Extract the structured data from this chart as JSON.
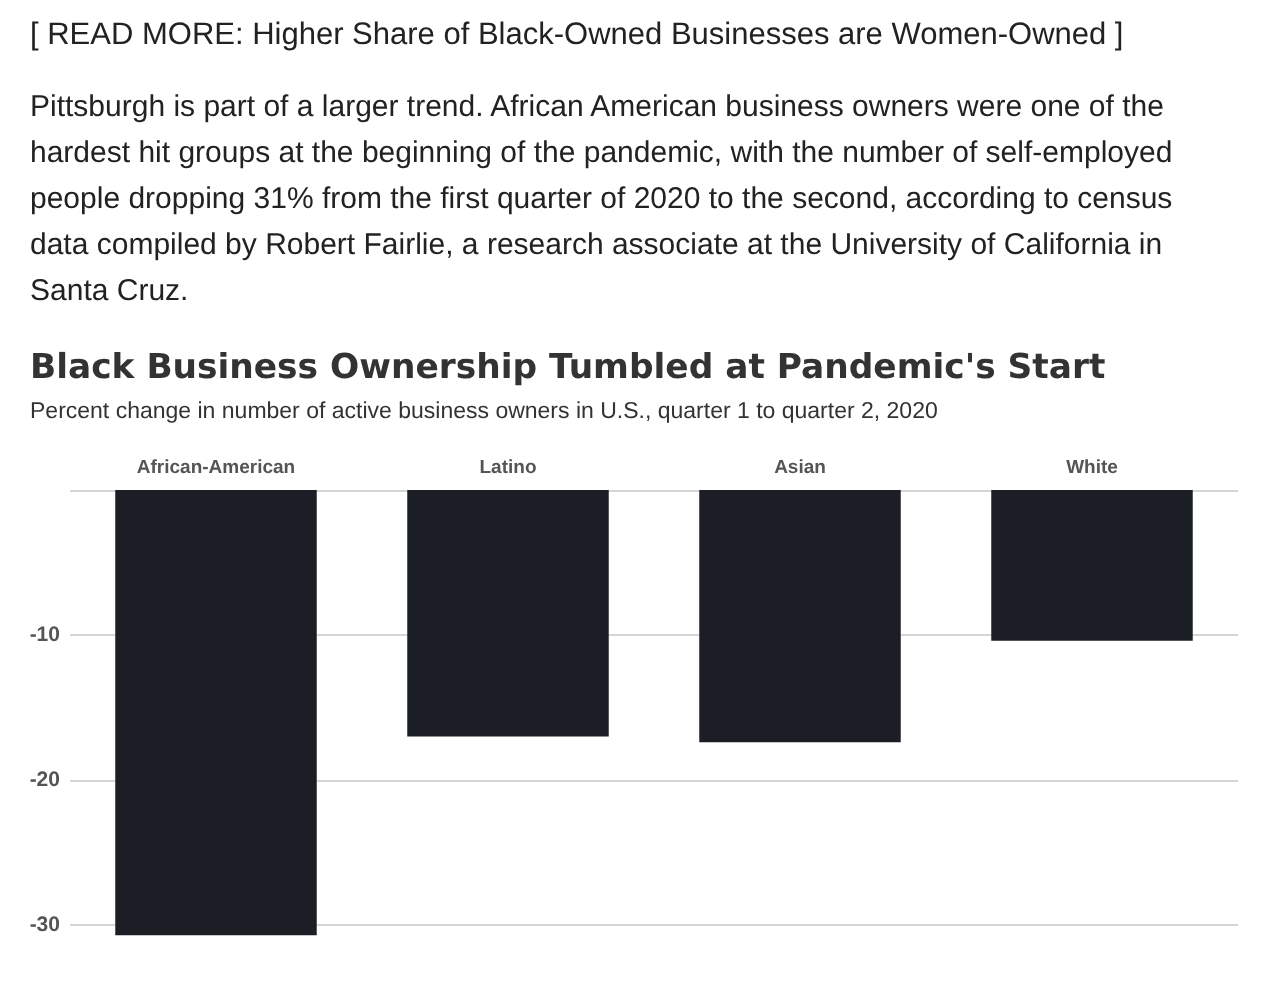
{
  "chart_data": {
    "type": "bar",
    "title": "Black Business Ownership Tumbled at Pandemic's Start",
    "subtitle": "Percent change in number of active business owners in U.S., quarter 1 to quarter 2, 2020",
    "annotations": [
      "[ READ MORE: Higher Share of Black-Owned Businesses are Women-Owned ]",
      "Pittsburgh is part of a larger trend. African American business owners were one of the hardest hit groups at the beginning of the pandemic, with the number of self-employed people dropping 31% from the first quarter of 2020 to the second, according to census data compiled by Robert Fairlie, a research associate at the University of California in Santa Cruz."
    ],
    "categories": [
      "African-American",
      "Latino",
      "Asian",
      "White"
    ],
    "values": [
      -30.7,
      -17,
      -17.4,
      -10.4
    ],
    "color": "#1c1e25",
    "ylim": [
      -30.7,
      0
    ],
    "yticks": [
      {
        "value": 0,
        "label": null
      },
      -10,
      -20,
      -30
    ],
    "grid": "y"
  }
}
